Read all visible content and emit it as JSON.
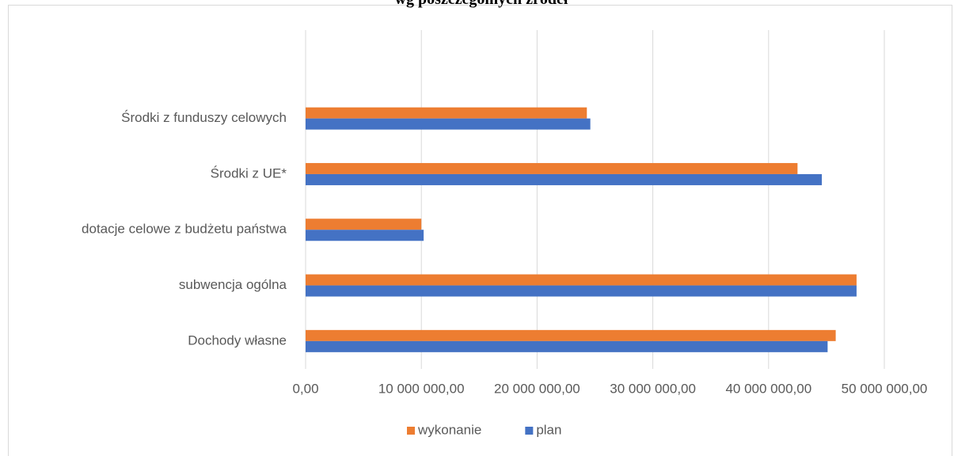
{
  "chart_data": {
    "type": "bar",
    "orientation": "horizontal",
    "title": "wg poszczególnych źródeł",
    "categories": [
      "Dochody własne",
      "subwencja ogólna",
      "dotacje celowe z budżetu państwa",
      "Środki  z UE*",
      "Środki z funduszy celowych"
    ],
    "series": [
      {
        "name": "wykonanie",
        "color": "#ed7d31",
        "values": [
          45800000,
          47600000,
          10000000,
          42500000,
          24300000
        ]
      },
      {
        "name": "plan",
        "color": "#4472c4",
        "values": [
          45100000,
          47600000,
          10200000,
          44600000,
          24600000
        ]
      }
    ],
    "xlim": [
      0,
      50000000
    ],
    "xticks": [
      {
        "value": 0,
        "label": "0,00"
      },
      {
        "value": 10000000,
        "label": "10 000 000,00"
      },
      {
        "value": 20000000,
        "label": "20 000 000,00"
      },
      {
        "value": 30000000,
        "label": "30 000 000,00"
      },
      {
        "value": 40000000,
        "label": "40 000 000,00"
      },
      {
        "value": 50000000,
        "label": "50 000 000,00"
      }
    ],
    "grid": true,
    "legend": "bottom"
  }
}
